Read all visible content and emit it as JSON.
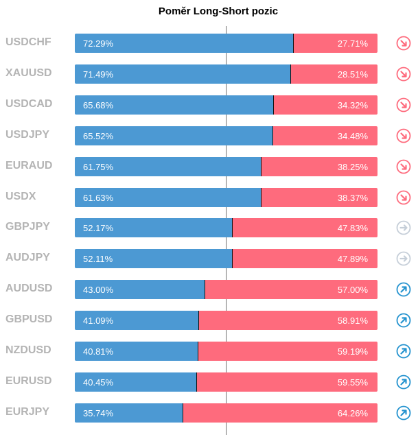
{
  "chart_data": {
    "type": "bar",
    "title": "Poměr Long-Short pozic",
    "categories": [
      "USDCHF",
      "XAUUSD",
      "USDCAD",
      "USDJPY",
      "EURAUD",
      "USDX",
      "GBPJPY",
      "AUDJPY",
      "AUDUSD",
      "GBPUSD",
      "NZDUSD",
      "EURUSD",
      "EURJPY"
    ],
    "series": [
      {
        "values": [
          72.29,
          71.49,
          65.68,
          65.52,
          61.75,
          61.63,
          52.17,
          52.11,
          43.0,
          41.09,
          40.81,
          40.45,
          35.74
        ]
      },
      {
        "values": [
          27.71,
          28.51,
          34.32,
          34.48,
          38.25,
          38.37,
          47.83,
          47.89,
          57.0,
          58.91,
          59.19,
          59.55,
          64.26
        ]
      }
    ],
    "long_labels": [
      "72.29%",
      "71.49%",
      "65.68%",
      "65.52%",
      "61.75%",
      "61.63%",
      "52.17%",
      "52.11%",
      "43.00%",
      "41.09%",
      "40.81%",
      "40.45%",
      "35.74%"
    ],
    "short_labels": [
      "27.71%",
      "28.51%",
      "34.32%",
      "34.48%",
      "38.25%",
      "38.37%",
      "47.83%",
      "47.89%",
      "57.00%",
      "58.91%",
      "59.19%",
      "59.55%",
      "64.26%"
    ],
    "signals": [
      "down",
      "down",
      "down",
      "down",
      "down",
      "down",
      "neutral",
      "neutral",
      "up",
      "up",
      "up",
      "up",
      "up"
    ],
    "colors": {
      "long": "#4c99d3",
      "short": "#fe6b7d",
      "down_icon": "#fe6b7d",
      "neutral_icon": "#c5ced8",
      "up_icon": "#2493cf"
    },
    "icons": {
      "down": "arrow-down-right-icon",
      "neutral": "arrow-right-icon",
      "up": "arrow-up-right-icon"
    }
  }
}
